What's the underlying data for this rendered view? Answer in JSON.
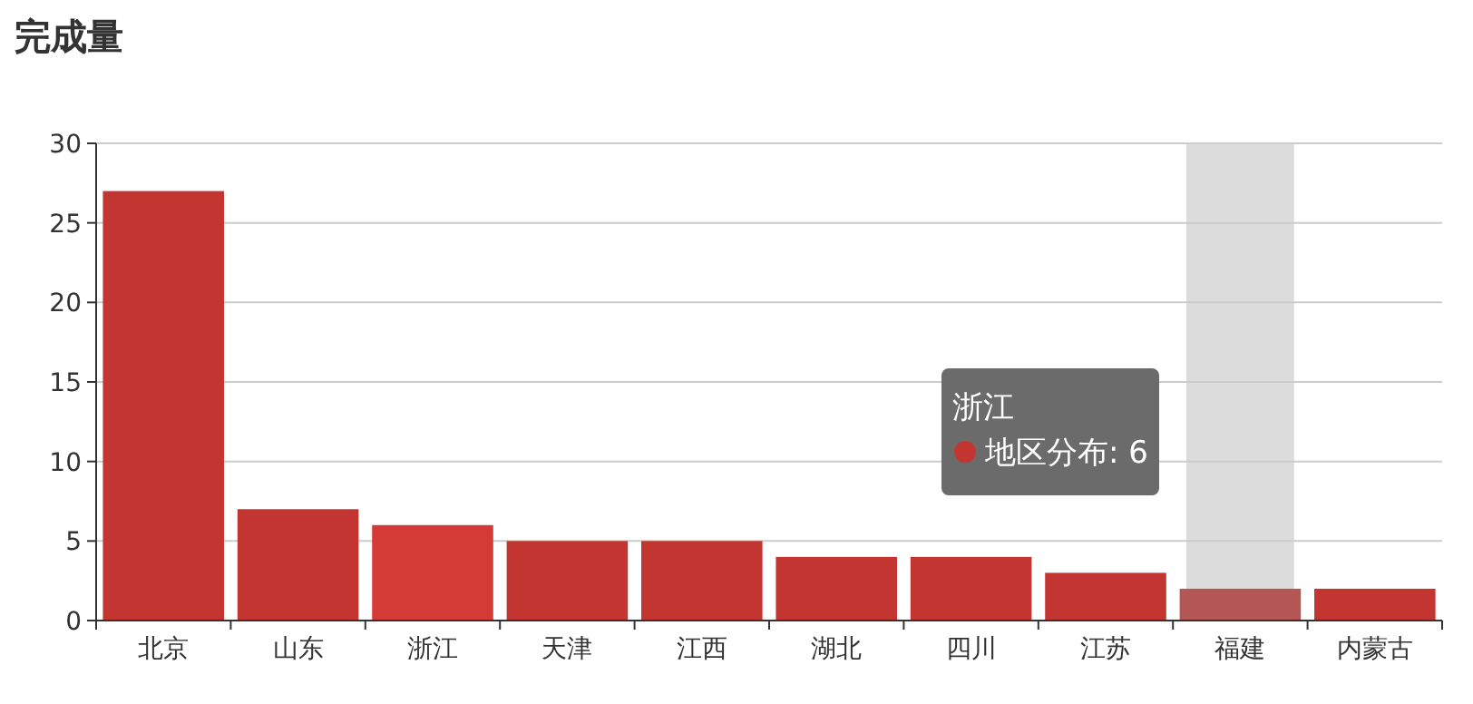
{
  "chart_data": {
    "type": "bar",
    "title": "完成量",
    "categories": [
      "北京",
      "山东",
      "浙江",
      "天津",
      "江西",
      "湖北",
      "四川",
      "江苏",
      "福建",
      "内蒙古"
    ],
    "values": [
      27,
      7,
      6,
      5,
      5,
      4,
      4,
      3,
      2,
      2
    ],
    "colors": [
      "#c23531",
      "#c23531",
      "#d43a36",
      "#c23531",
      "#c23531",
      "#c23531",
      "#c23531",
      "#c23531",
      "#b35654",
      "#c23531"
    ],
    "ylim": [
      0,
      30
    ],
    "yticks": [
      0,
      5,
      10,
      15,
      20,
      25,
      30
    ],
    "grid": "y",
    "bands": [
      {
        "axis": "x",
        "from": "福建",
        "to": "福建",
        "color": "#dcdcdc"
      }
    ],
    "annotations": [
      "浙江",
      "地区分布: 6"
    ]
  }
}
